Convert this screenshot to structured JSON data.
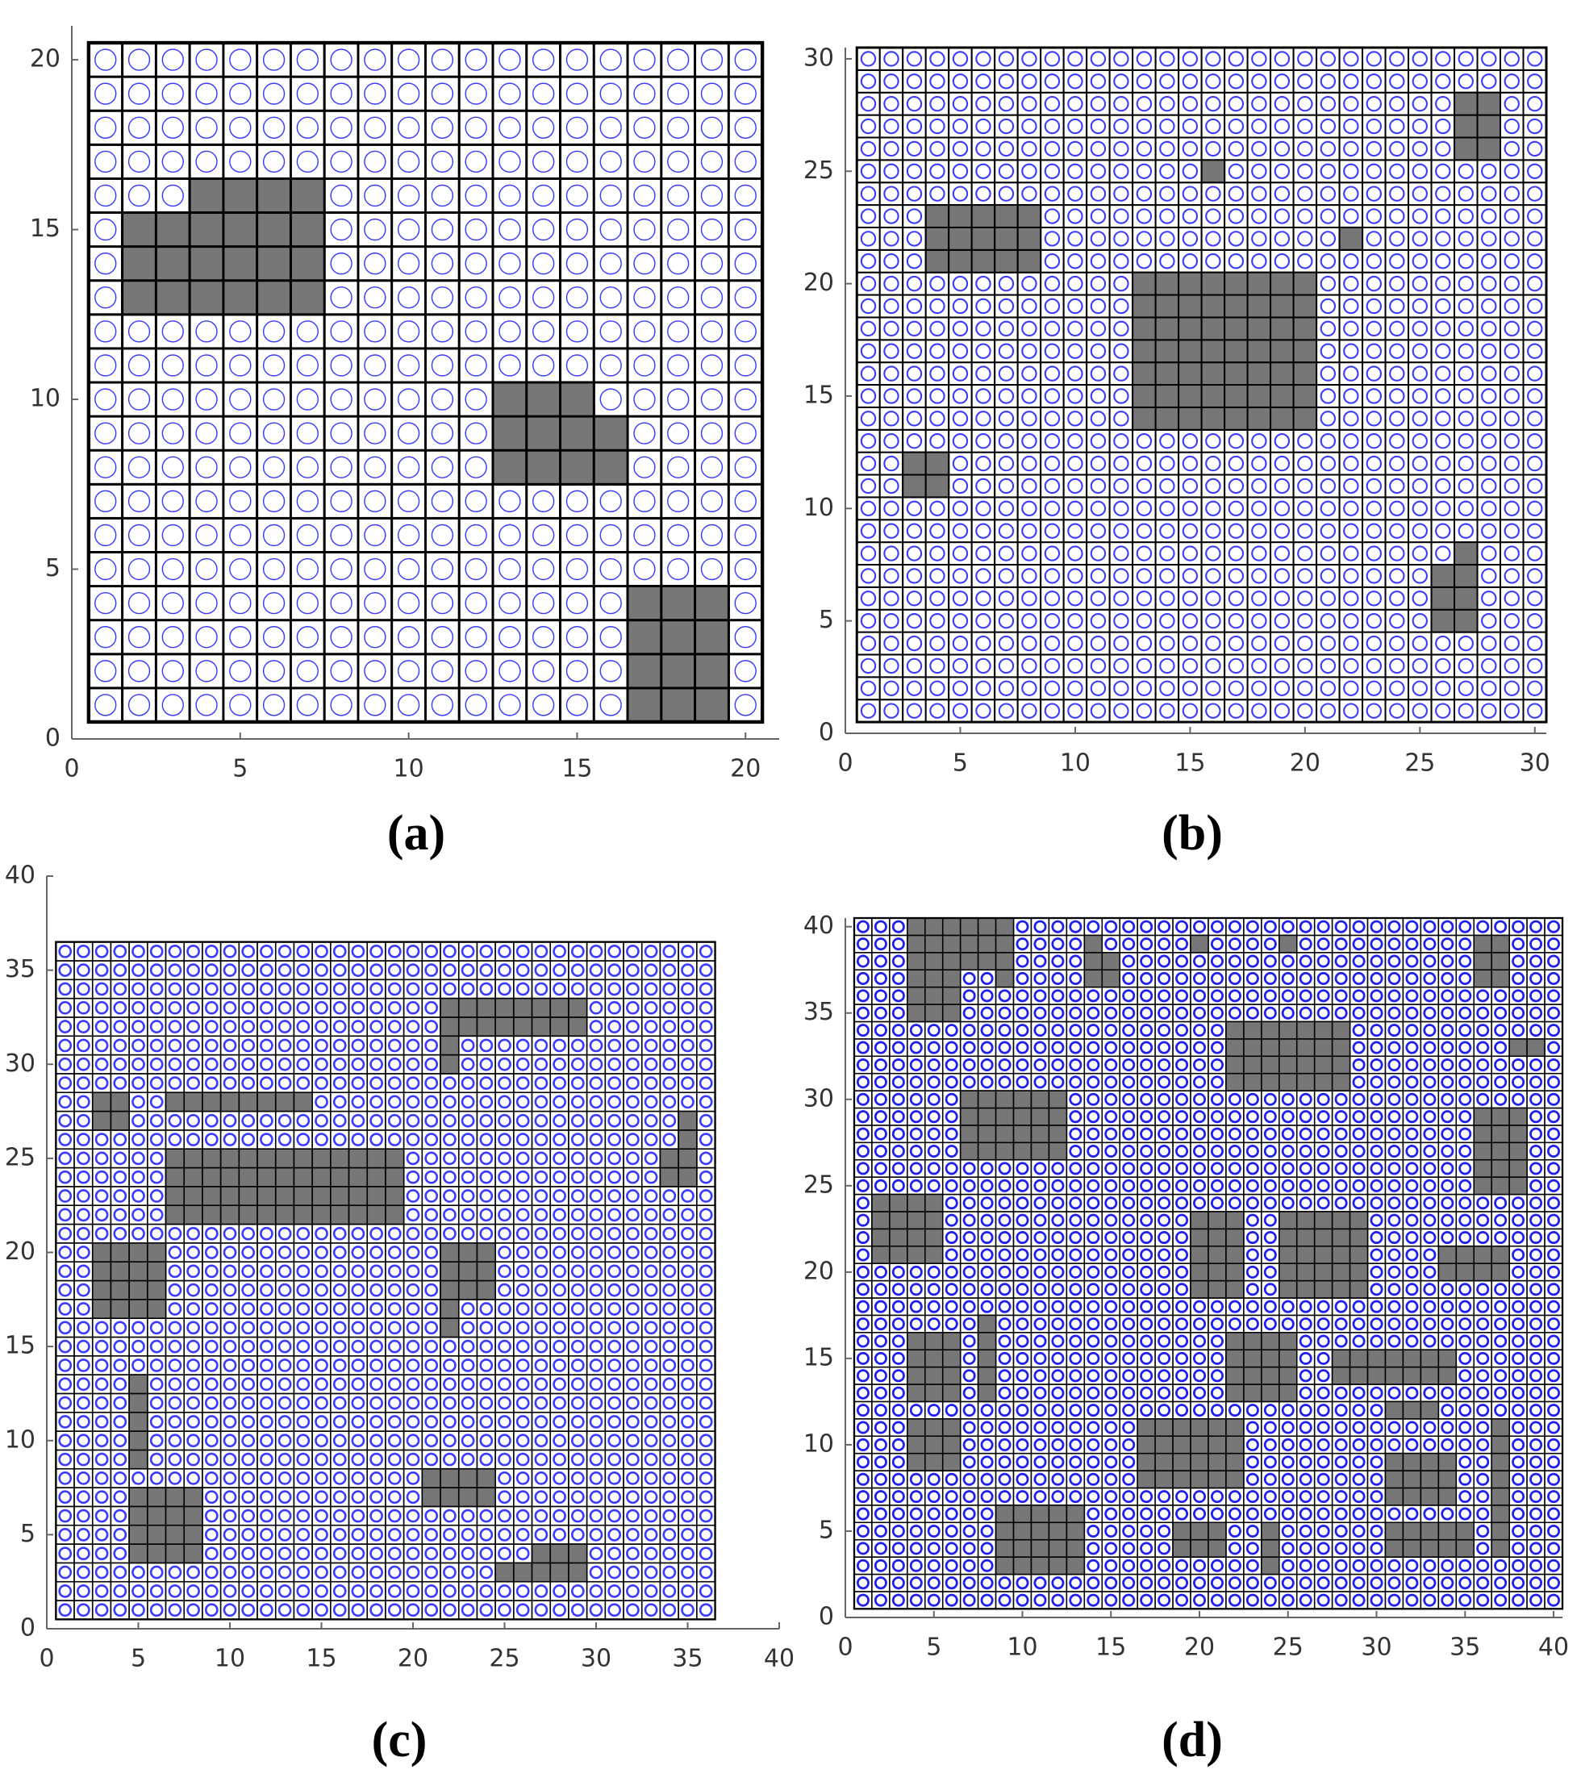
{
  "chart_data": [
    {
      "type": "gridmap",
      "label": "(a)",
      "size": 20,
      "xlim": [
        0,
        21
      ],
      "ylim": [
        0,
        21
      ],
      "xticks": [
        0,
        5,
        10,
        15,
        20
      ],
      "yticks": [
        0,
        5,
        10,
        15,
        20
      ],
      "circle_color": "#3b3bff",
      "obstacle_color": "#777777",
      "obstacles": [
        [
          2,
          13,
          6,
          3
        ],
        [
          4,
          16,
          4,
          1
        ],
        [
          13,
          8,
          4,
          2
        ],
        [
          13,
          10,
          3,
          1
        ],
        [
          17,
          1,
          3,
          4
        ]
      ]
    },
    {
      "type": "gridmap",
      "label": "(b)",
      "size": 30,
      "xlim": [
        0,
        30.5
      ],
      "ylim": [
        0,
        30.5
      ],
      "xticks": [
        0,
        5,
        10,
        15,
        20,
        25,
        30
      ],
      "yticks": [
        0,
        5,
        10,
        15,
        20,
        25,
        30
      ],
      "circle_color": "#3b3bff",
      "obstacle_color": "#777777",
      "obstacles": [
        [
          27,
          26,
          2,
          3
        ],
        [
          16,
          25,
          1,
          1
        ],
        [
          22,
          22,
          1,
          1
        ],
        [
          4,
          21,
          5,
          3
        ],
        [
          13,
          14,
          8,
          7
        ],
        [
          3,
          11,
          2,
          2
        ],
        [
          26,
          5,
          2,
          3
        ],
        [
          27,
          8,
          1,
          1
        ]
      ]
    },
    {
      "type": "gridmap",
      "label": "(c)",
      "size": 36,
      "xlim": [
        0,
        40
      ],
      "ylim": [
        0,
        40
      ],
      "xticks": [
        0,
        5,
        10,
        15,
        20,
        25,
        30,
        35,
        40
      ],
      "yticks": [
        0,
        5,
        10,
        15,
        20,
        25,
        30,
        35,
        40
      ],
      "circle_color": "#3b3bff",
      "obstacle_color": "#777777",
      "obstacles": [
        [
          22,
          32,
          8,
          2
        ],
        [
          22,
          30,
          1,
          2
        ],
        [
          3,
          27,
          2,
          2
        ],
        [
          7,
          28,
          8,
          1
        ],
        [
          7,
          22,
          13,
          4
        ],
        [
          34,
          24,
          2,
          2
        ],
        [
          35,
          26,
          1,
          2
        ],
        [
          3,
          17,
          4,
          4
        ],
        [
          22,
          16,
          1,
          5
        ],
        [
          23,
          18,
          2,
          3
        ],
        [
          5,
          9,
          1,
          5
        ],
        [
          5,
          4,
          4,
          4
        ],
        [
          21,
          7,
          4,
          2
        ],
        [
          25,
          3,
          5,
          1
        ],
        [
          27,
          4,
          3,
          1
        ]
      ]
    },
    {
      "type": "gridmap",
      "label": "(d)",
      "size": 40,
      "xlim": [
        0,
        40.5
      ],
      "ylim": [
        0,
        40.5
      ],
      "xticks": [
        0,
        5,
        10,
        15,
        20,
        25,
        30,
        35,
        40
      ],
      "yticks": [
        0,
        5,
        10,
        15,
        20,
        25,
        30,
        35,
        40
      ],
      "circle_color": "#2020ee",
      "obstacle_color": "#777777",
      "obstacles": [
        [
          4,
          38,
          6,
          3
        ],
        [
          4,
          35,
          3,
          3
        ],
        [
          9,
          37,
          1,
          1
        ],
        [
          14,
          37,
          2,
          2
        ],
        [
          14,
          39,
          1,
          1
        ],
        [
          20,
          39,
          1,
          1
        ],
        [
          25,
          39,
          1,
          1
        ],
        [
          36,
          37,
          2,
          3
        ],
        [
          38,
          33,
          2,
          1
        ],
        [
          22,
          31,
          7,
          4
        ],
        [
          7,
          27,
          6,
          4
        ],
        [
          36,
          25,
          3,
          5
        ],
        [
          2,
          21,
          4,
          4
        ],
        [
          20,
          19,
          3,
          5
        ],
        [
          25,
          19,
          5,
          5
        ],
        [
          34,
          20,
          4,
          2
        ],
        [
          4,
          13,
          3,
          4
        ],
        [
          8,
          13,
          1,
          5
        ],
        [
          22,
          13,
          4,
          4
        ],
        [
          28,
          14,
          7,
          2
        ],
        [
          31,
          12,
          3,
          1
        ],
        [
          4,
          9,
          3,
          3
        ],
        [
          17,
          8,
          6,
          4
        ],
        [
          31,
          7,
          4,
          3
        ],
        [
          37,
          4,
          1,
          8
        ],
        [
          9,
          3,
          5,
          4
        ],
        [
          19,
          4,
          3,
          2
        ],
        [
          24,
          3,
          1,
          3
        ],
        [
          31,
          4,
          5,
          2
        ]
      ]
    }
  ]
}
